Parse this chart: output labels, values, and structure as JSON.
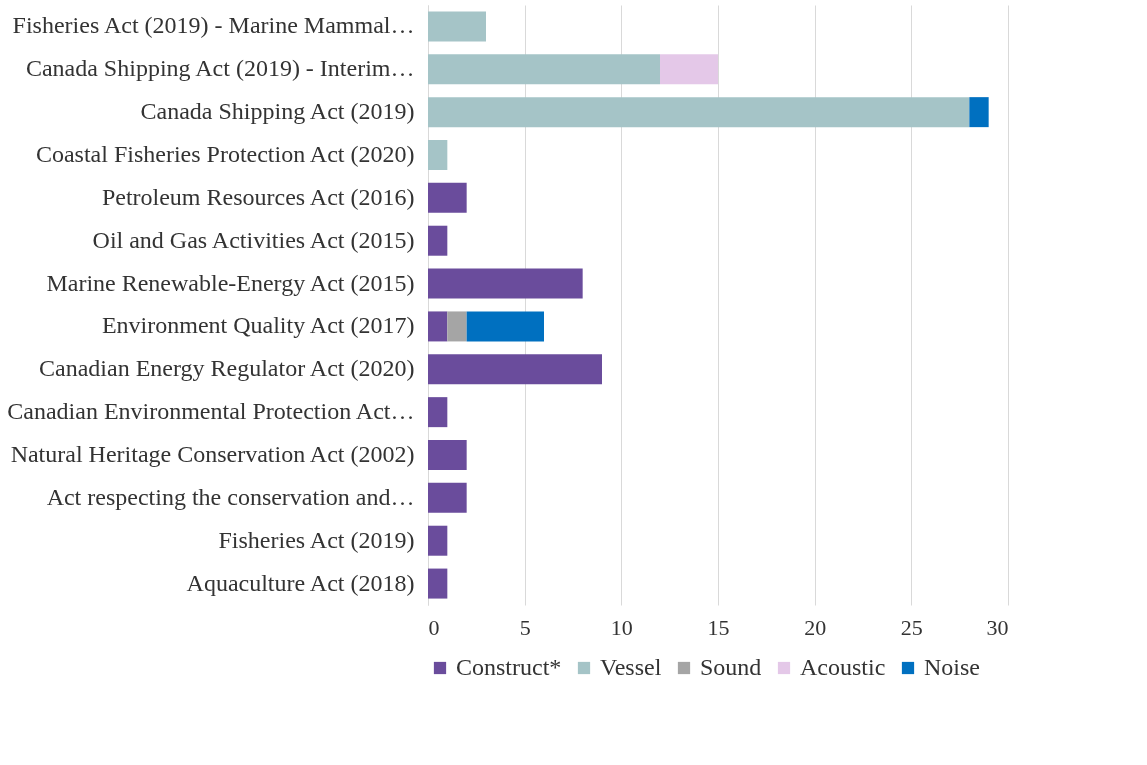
{
  "chart_data": {
    "type": "bar",
    "orientation": "horizontal",
    "stacked": true,
    "categories": [
      "Fisheries Act (2019) - Marine Mammal…",
      "Canada Shipping Act (2019) - Interim…",
      "Canada Shipping Act (2019)",
      "Coastal Fisheries Protection Act (2020)",
      "Petroleum Resources Act (2016)",
      "Oil and Gas Activities Act (2015)",
      "Marine Renewable-Energy Act (2015)",
      "Environment Quality Act (2017)",
      "Canadian Energy Regulator Act (2020)",
      "Canadian Environmental Protection Act…",
      "Natural Heritage Conservation Act (2002)",
      "Act respecting the conservation and…",
      "Fisheries Act (2019)",
      "Aquaculture Act (2018)"
    ],
    "series": [
      {
        "name": "Construct*",
        "color": "#6a4c9c",
        "values": [
          null,
          null,
          null,
          null,
          2,
          1,
          8,
          1,
          9,
          1,
          2,
          2,
          1,
          1
        ]
      },
      {
        "name": "Vessel",
        "color": "#a5c4c7",
        "values": [
          3,
          12,
          28,
          1,
          null,
          null,
          null,
          null,
          null,
          null,
          null,
          null,
          null,
          null
        ]
      },
      {
        "name": "Sound",
        "color": "#a5a5a5",
        "values": [
          null,
          null,
          null,
          null,
          null,
          null,
          null,
          1,
          null,
          null,
          null,
          null,
          null,
          null
        ]
      },
      {
        "name": "Acoustic",
        "color": "#e4c8e8",
        "values": [
          null,
          3,
          null,
          null,
          null,
          null,
          null,
          null,
          null,
          null,
          null,
          null,
          null,
          null
        ]
      },
      {
        "name": "Noise",
        "color": "#0070c0",
        "values": [
          null,
          null,
          1,
          null,
          null,
          null,
          null,
          4,
          null,
          null,
          null,
          null,
          null,
          null
        ]
      }
    ],
    "xlim": [
      0,
      30
    ],
    "xticks": [
      0,
      5,
      10,
      15,
      20,
      25,
      30
    ],
    "grid": "x",
    "legend": "bottom"
  }
}
